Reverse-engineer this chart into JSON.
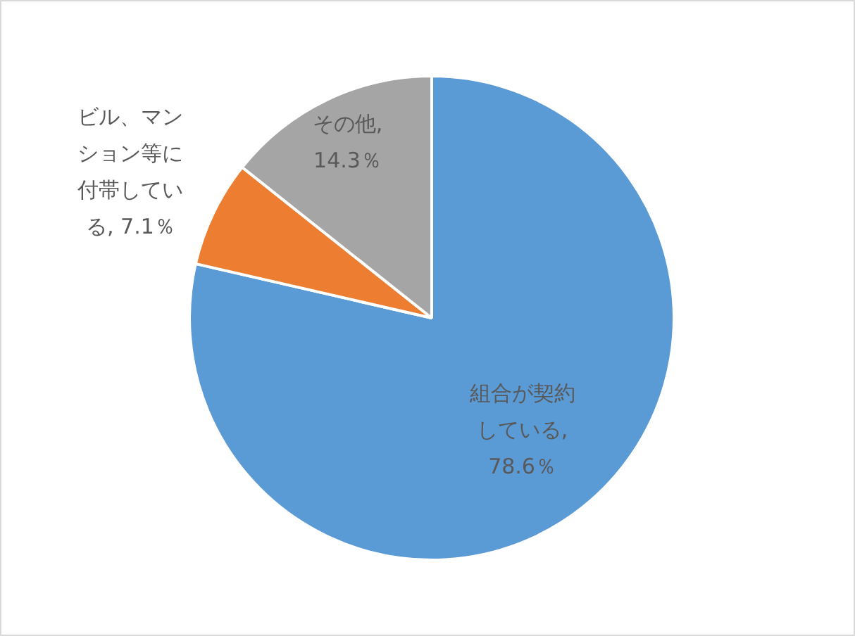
{
  "chart_data": {
    "type": "pie",
    "categories": [
      "組合が契約している",
      "ビル、マンション等に付帯している",
      "その他"
    ],
    "values": [
      78.6,
      7.1,
      14.3
    ],
    "colors": [
      "#5b9bd5",
      "#ed7d31",
      "#a5a5a5"
    ],
    "value_labels": [
      ", 78.6％",
      ", 7.1％",
      ", 14.3％"
    ],
    "legend": false
  }
}
